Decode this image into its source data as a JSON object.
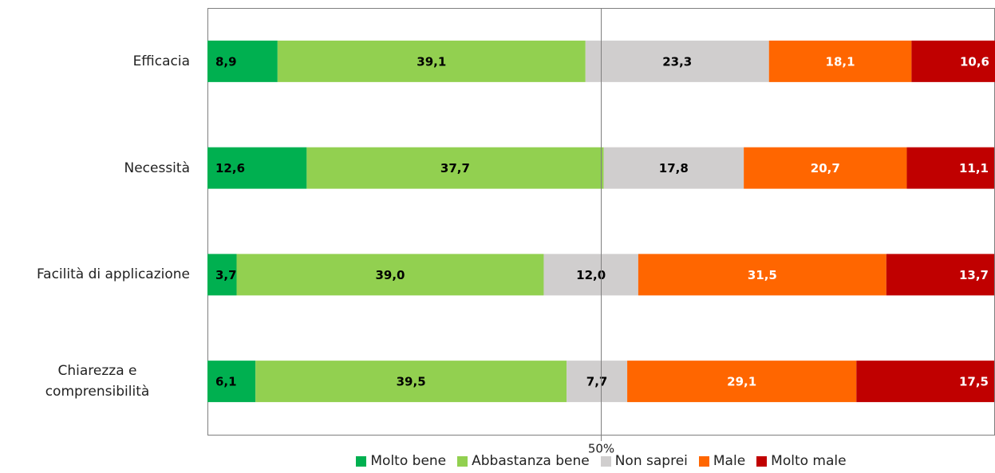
{
  "chart_data": {
    "type": "stacked-bar-horizontal",
    "categories": [
      "Efficacia",
      "Necessità",
      "Facilità di applicazione",
      "Chiarezza e comprensibilità"
    ],
    "series": [
      {
        "name": "Molto bene",
        "color": "#00b050",
        "label_color": "#000000",
        "values": [
          8.9,
          12.6,
          3.7,
          6.1
        ],
        "value_labels": [
          "8,9",
          "12,6",
          "3,7",
          "6,1"
        ]
      },
      {
        "name": "Abbastanza bene",
        "color": "#92d050",
        "label_color": "#000000",
        "values": [
          39.1,
          37.7,
          39.0,
          39.5
        ],
        "value_labels": [
          "39,1",
          "37,7",
          "39,0",
          "39,5"
        ]
      },
      {
        "name": "Non saprei",
        "color": "#d0cece",
        "label_color": "#000000",
        "values": [
          23.3,
          17.8,
          12.0,
          7.7
        ],
        "value_labels": [
          "23,3",
          "17,8",
          "12,0",
          "7,7"
        ]
      },
      {
        "name": "Male",
        "color": "#ff6600",
        "label_color": "#ffffff",
        "values": [
          18.1,
          20.7,
          31.5,
          29.1
        ],
        "value_labels": [
          "18,1",
          "20,7",
          "31,5",
          "29,1"
        ]
      },
      {
        "name": "Molto male",
        "color": "#c00000",
        "label_color": "#ffffff",
        "values": [
          10.6,
          11.1,
          13.7,
          17.5
        ],
        "value_labels": [
          "10,6",
          "11,1",
          "13,7",
          "17,5"
        ]
      }
    ],
    "xlim": [
      0,
      100
    ],
    "xticks": [
      {
        "value": 50,
        "label": "50%"
      }
    ],
    "grid": true,
    "legend": "bottom"
  }
}
